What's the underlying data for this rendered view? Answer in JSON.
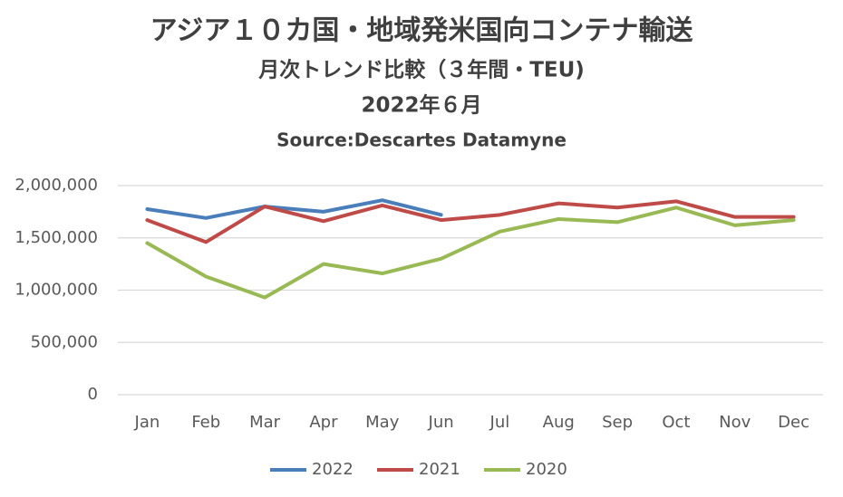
{
  "chart_data": {
    "type": "line",
    "title": "アジア１０カ国・地域発米国向コンテナ輸送",
    "subtitle": [
      "月次トレンド比較（３年間・TEU)",
      "2022年６月"
    ],
    "source": "Source:Descartes Datamyne",
    "categories": [
      "Jan",
      "Feb",
      "Mar",
      "Apr",
      "May",
      "Jun",
      "Jul",
      "Aug",
      "Sep",
      "Oct",
      "Nov",
      "Dec"
    ],
    "series": [
      {
        "name": "2022",
        "color": "#4a7ebb",
        "values": [
          1775000,
          1690000,
          1800000,
          1750000,
          1860000,
          1720000,
          null,
          null,
          null,
          null,
          null,
          null
        ]
      },
      {
        "name": "2021",
        "color": "#be4b48",
        "values": [
          1670000,
          1460000,
          1800000,
          1660000,
          1810000,
          1670000,
          1720000,
          1830000,
          1790000,
          1850000,
          1700000,
          1700000
        ]
      },
      {
        "name": "2020",
        "color": "#98b954",
        "values": [
          1450000,
          1130000,
          930000,
          1250000,
          1160000,
          1300000,
          1560000,
          1680000,
          1650000,
          1790000,
          1620000,
          1670000
        ]
      }
    ],
    "ylim": [
      0,
      2000000
    ],
    "yticks": [
      0,
      {
        "value": 500000,
        "label": "500,000"
      },
      {
        "value": 1000000,
        "label": "1,000,000"
      },
      {
        "value": 1500000,
        "label": "1,500,000"
      },
      {
        "value": 2000000,
        "label": "2,000,000"
      }
    ],
    "grid": true,
    "legend": "bottom"
  }
}
